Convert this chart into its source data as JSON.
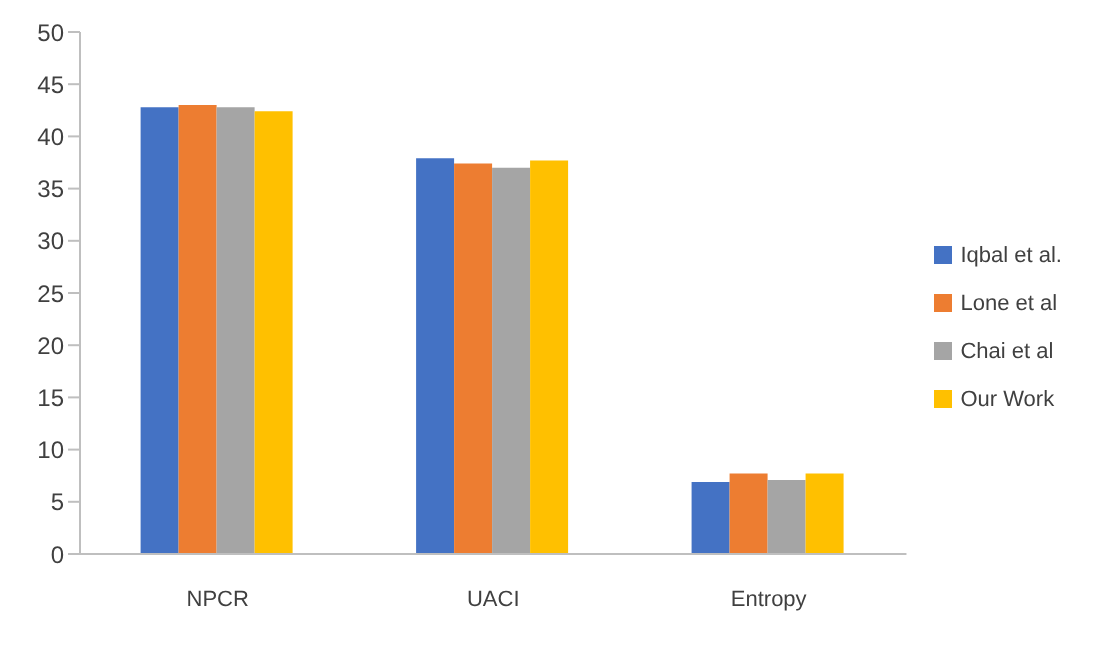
{
  "chart_data": {
    "type": "bar",
    "categories": [
      "NPCR",
      "UACI",
      "Entropy"
    ],
    "series": [
      {
        "name": "Iqbal et al.",
        "color": "#4472c4",
        "values": [
          42.8,
          37.9,
          6.9
        ]
      },
      {
        "name": "Lone et al",
        "color": "#ed7d31",
        "values": [
          43.0,
          37.4,
          7.7
        ]
      },
      {
        "name": "Chai et al",
        "color": "#a5a5a5",
        "values": [
          42.8,
          37.0,
          7.1
        ]
      },
      {
        "name": "Our Work",
        "color": "#ffc000",
        "values": [
          42.4,
          37.7,
          7.7
        ]
      }
    ],
    "ylim": [
      0,
      50
    ],
    "yticks": [
      0,
      5,
      10,
      15,
      20,
      25,
      30,
      35,
      40,
      45,
      50
    ],
    "grid": false,
    "legend": "right"
  }
}
